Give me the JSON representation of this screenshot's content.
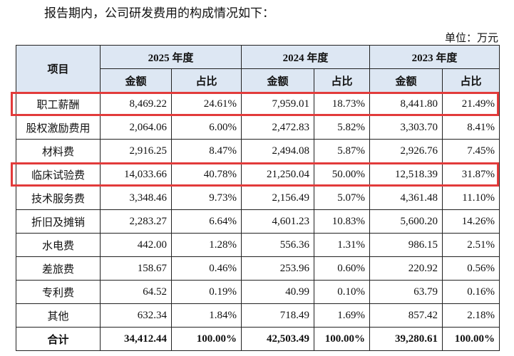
{
  "intro": "报告期内，公司研发费用的构成情况如下：",
  "unit": "单位：万元",
  "table": {
    "header": {
      "item": "项目",
      "years": [
        "2025 年度",
        "2024 年度",
        "2023 年度"
      ],
      "sub": [
        "金额",
        "占比",
        "金额",
        "占比",
        "金额",
        "占比"
      ]
    },
    "rows": [
      [
        "职工薪酬",
        "8,469.22",
        "24.61%",
        "7,959.01",
        "18.73%",
        "8,441.80",
        "21.49%"
      ],
      [
        "股权激励费用",
        "2,064.06",
        "6.00%",
        "2,472.83",
        "5.82%",
        "3,303.70",
        "8.41%"
      ],
      [
        "材料费",
        "2,916.25",
        "8.47%",
        "2,494.08",
        "5.87%",
        "2,926.76",
        "7.45%"
      ],
      [
        "临床试验费",
        "14,033.66",
        "40.78%",
        "21,250.04",
        "50.00%",
        "12,518.39",
        "31.87%"
      ],
      [
        "技术服务费",
        "3,348.46",
        "9.73%",
        "2,156.49",
        "5.07%",
        "4,361.48",
        "11.10%"
      ],
      [
        "折旧及摊销",
        "2,283.27",
        "6.64%",
        "4,601.23",
        "10.83%",
        "5,600.20",
        "14.26%"
      ],
      [
        "水电费",
        "442.00",
        "1.28%",
        "556.36",
        "1.31%",
        "986.15",
        "2.51%"
      ],
      [
        "差旅费",
        "158.67",
        "0.46%",
        "253.96",
        "0.60%",
        "220.92",
        "0.56%"
      ],
      [
        "专利费",
        "64.52",
        "0.19%",
        "40.99",
        "0.10%",
        "63.79",
        "0.16%"
      ],
      [
        "其他",
        "632.34",
        "1.84%",
        "718.49",
        "1.69%",
        "857.42",
        "2.18%"
      ]
    ],
    "total": [
      "合计",
      "34,412.44",
      "100.00%",
      "42,503.49",
      "100.00%",
      "39,280.61",
      "100.00%"
    ]
  }
}
